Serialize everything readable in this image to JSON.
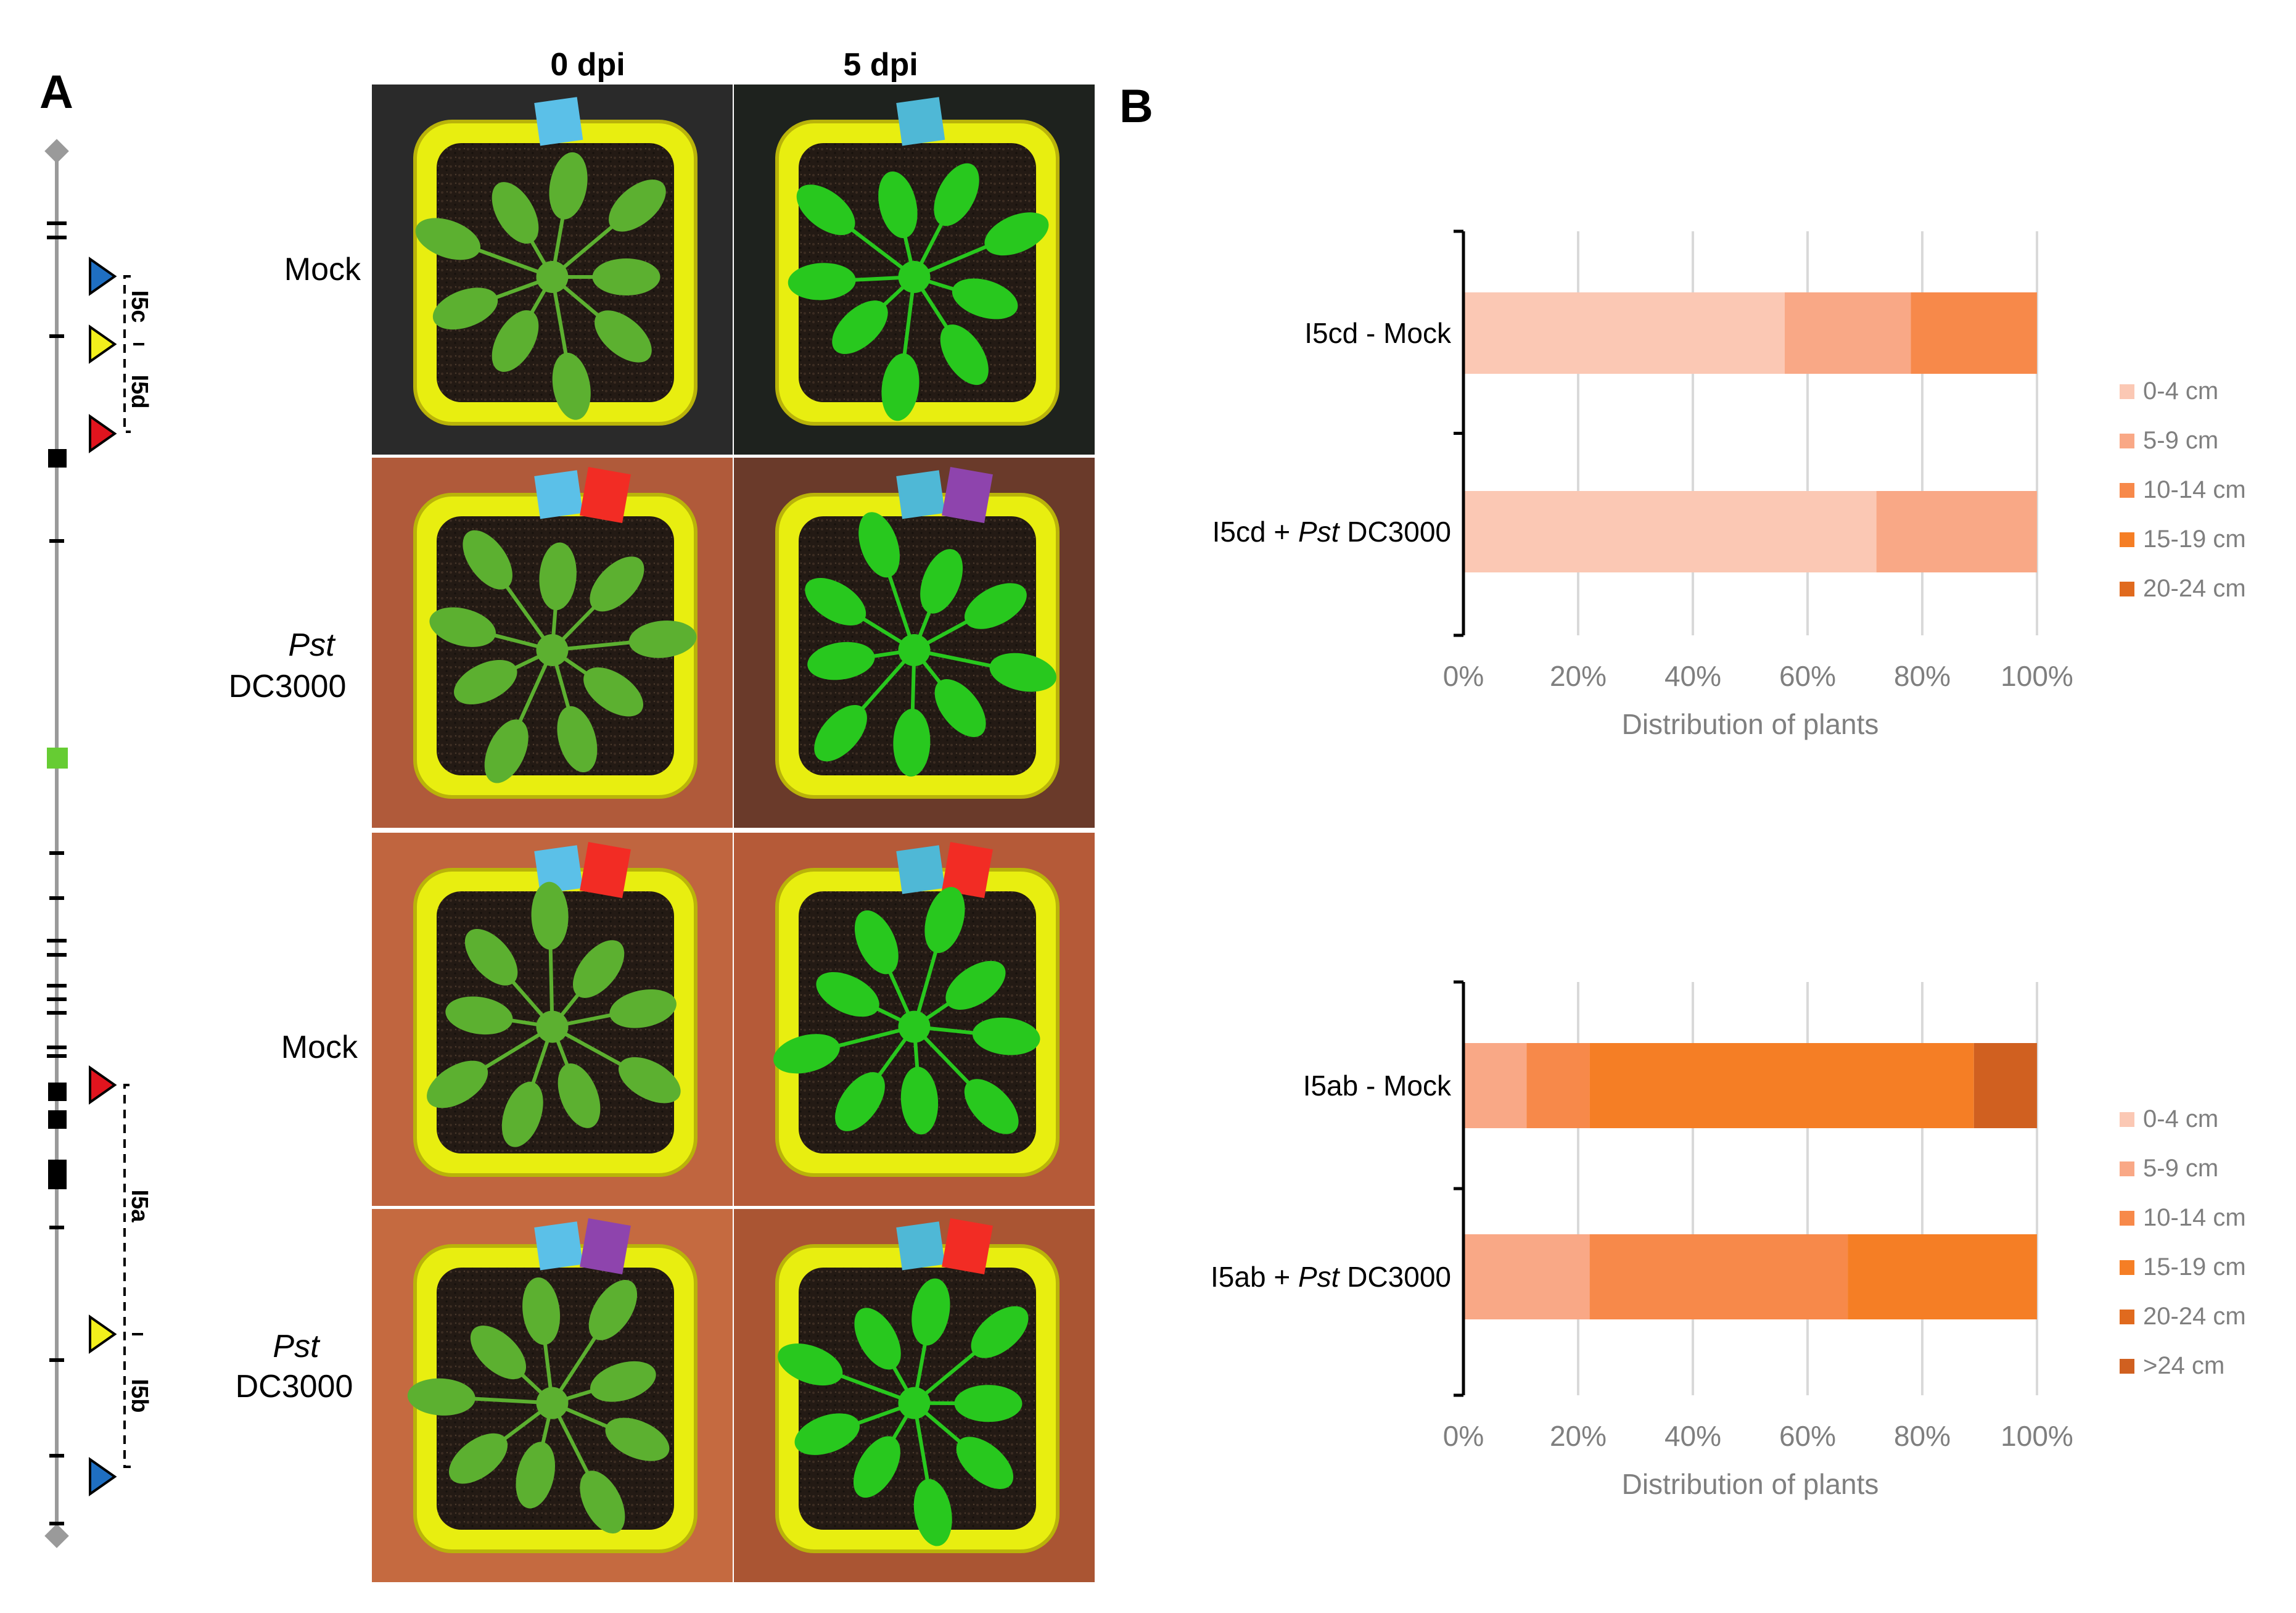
{
  "panel_a": {
    "letter": "A",
    "col_headers": [
      "0 dpi",
      "5 dpi"
    ],
    "rows": [
      {
        "line1": "Mock",
        "line2": ""
      },
      {
        "line1": "Pst",
        "line2": "DC3000"
      },
      {
        "line1": "Mock",
        "line2": ""
      },
      {
        "line1": "Pst",
        "line2": "DC3000"
      }
    ],
    "gene_labels": {
      "i5c": "I5c",
      "i5d": "I5d",
      "i5a": "I5a",
      "i5b": "I5b"
    },
    "photo_bg_colors": [
      "#2a2a2a",
      "#1e221e",
      "#b05a3a",
      "#6a3a2a",
      "#c0653f",
      "#b55a38",
      "#c56a40",
      "#aa5533"
    ],
    "marker_colors": {
      "blue": "#1f6fc2",
      "yellow": "#f2ef1c",
      "red": "#e0141e",
      "green": "#66cc33"
    }
  },
  "panel_b": {
    "letter": "B",
    "colors": {
      "0-4 cm": "#fbc8b4",
      "5-9 cm": "#f9a886",
      "10-14 cm": "#f7894a",
      "15-19 cm": "#f57e25",
      "20-24 cm": "#e06a1e",
      ">24 cm": "#d06020"
    }
  },
  "chart_data": [
    {
      "type": "bar",
      "orientation": "horizontal",
      "stacked": true,
      "categories": [
        "I5cd - Mock",
        "I5cd + Pst DC3000"
      ],
      "category_parts": [
        [
          "I5cd - Mock",
          "",
          ""
        ],
        [
          "I5cd + ",
          "Pst",
          " DC3000"
        ]
      ],
      "series": [
        {
          "name": "0-4 cm",
          "values": [
            56,
            72
          ]
        },
        {
          "name": "5-9 cm",
          "values": [
            22,
            28
          ]
        },
        {
          "name": "10-14 cm",
          "values": [
            22,
            0
          ]
        },
        {
          "name": "15-19 cm",
          "values": [
            0,
            0
          ]
        },
        {
          "name": "20-24 cm",
          "values": [
            0,
            0
          ]
        }
      ],
      "xlabel": "Distribution of plants",
      "xticks": [
        "0%",
        "20%",
        "40%",
        "60%",
        "80%",
        "100%"
      ],
      "xlim": [
        0,
        100
      ],
      "grid": true,
      "legend": "right"
    },
    {
      "type": "bar",
      "orientation": "horizontal",
      "stacked": true,
      "categories": [
        "I5ab - Mock",
        "I5ab + Pst DC3000"
      ],
      "category_parts": [
        [
          "I5ab - Mock",
          "",
          ""
        ],
        [
          "I5ab + ",
          "Pst",
          " DC3000"
        ]
      ],
      "series": [
        {
          "name": "0-4 cm",
          "values": [
            0,
            0
          ]
        },
        {
          "name": "5-9 cm",
          "values": [
            11,
            22
          ]
        },
        {
          "name": "10-14 cm",
          "values": [
            11,
            45
          ]
        },
        {
          "name": "15-19 cm",
          "values": [
            67,
            33
          ]
        },
        {
          "name": "20-24 cm",
          "values": [
            0,
            0
          ]
        },
        {
          "name": ">24 cm",
          "values": [
            11,
            0
          ]
        }
      ],
      "xlabel": "Distribution of plants",
      "xticks": [
        "0%",
        "20%",
        "40%",
        "60%",
        "80%",
        "100%"
      ],
      "xlim": [
        0,
        100
      ],
      "grid": true,
      "legend": "right"
    }
  ]
}
